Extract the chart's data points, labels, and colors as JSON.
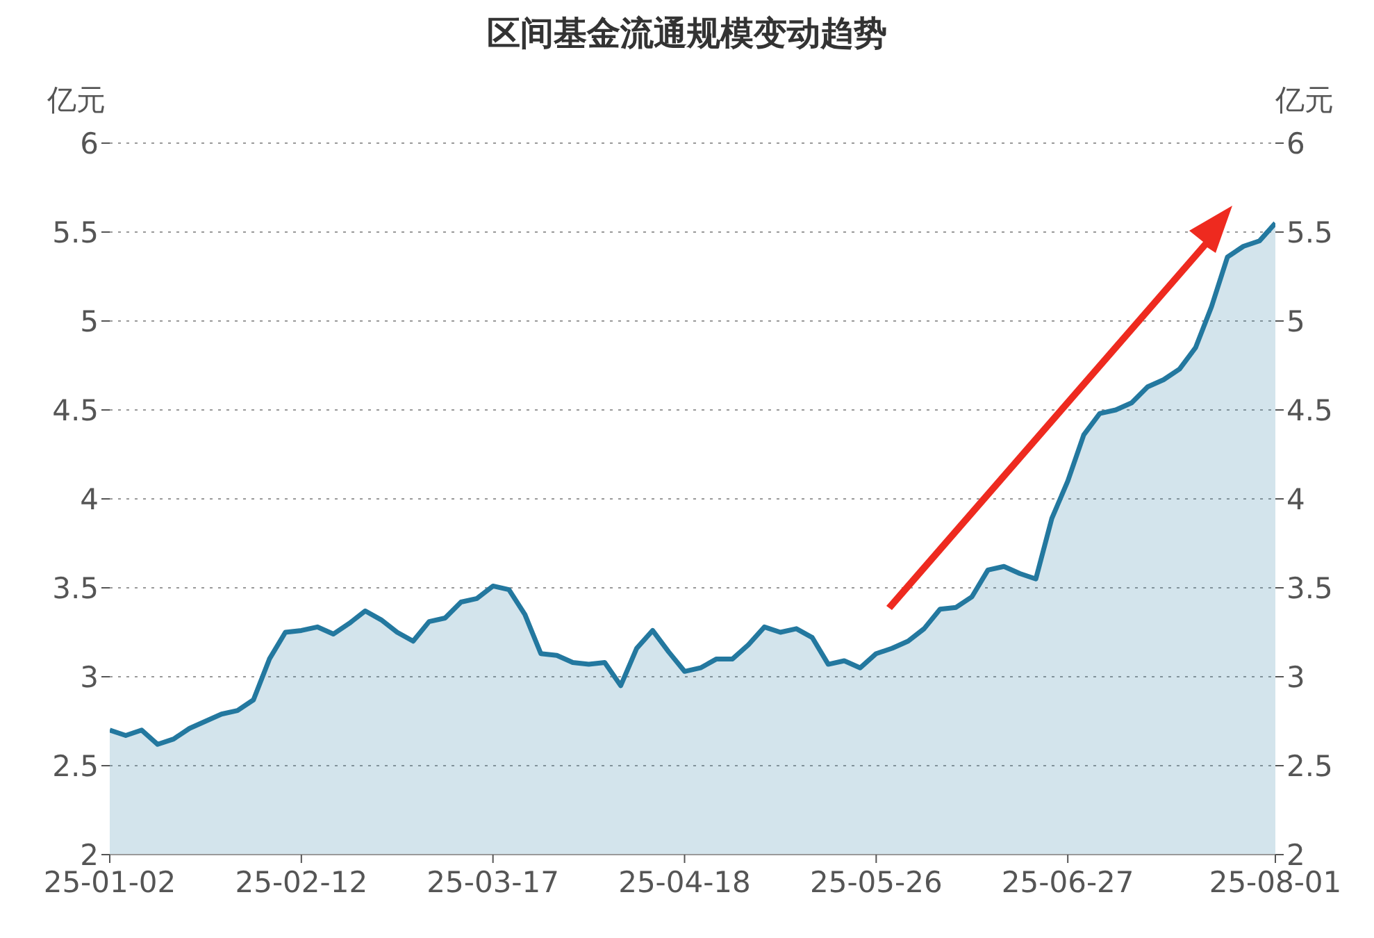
{
  "chart_data": {
    "type": "area",
    "title": "区间基金流通规模变动趋势",
    "ylabel": "亿元",
    "y2label": "亿元",
    "categories": [
      "25-01-02",
      null,
      null,
      null,
      null,
      null,
      null,
      null,
      null,
      null,
      null,
      null,
      "25-02-12",
      null,
      null,
      null,
      null,
      null,
      null,
      null,
      null,
      null,
      null,
      null,
      "25-03-17",
      null,
      null,
      null,
      null,
      null,
      null,
      null,
      null,
      null,
      null,
      null,
      "25-04-18",
      null,
      null,
      null,
      null,
      null,
      null,
      null,
      null,
      null,
      null,
      null,
      "25-05-26",
      null,
      null,
      null,
      null,
      null,
      null,
      null,
      null,
      null,
      null,
      null,
      "25-06-27",
      null,
      null,
      null,
      null,
      null,
      null,
      null,
      null,
      null,
      null,
      null,
      null,
      "25-08-01"
    ],
    "series": [
      {
        "color": "#23789f",
        "values": [
          2.7,
          2.67,
          2.7,
          2.62,
          2.65,
          2.71,
          2.75,
          2.79,
          2.81,
          2.87,
          3.1,
          3.25,
          3.26,
          3.28,
          3.24,
          3.3,
          3.37,
          3.32,
          3.25,
          3.2,
          3.31,
          3.33,
          3.42,
          3.44,
          3.51,
          3.49,
          3.35,
          3.13,
          3.12,
          3.08,
          3.07,
          3.08,
          2.95,
          3.16,
          3.26,
          3.14,
          3.03,
          3.05,
          3.1,
          3.1,
          3.18,
          3.28,
          3.25,
          3.27,
          3.22,
          3.07,
          3.09,
          3.05,
          3.13,
          3.16,
          3.2,
          3.27,
          3.38,
          3.39,
          3.45,
          3.6,
          3.62,
          3.58,
          3.55,
          3.89,
          4.1,
          4.36,
          4.48,
          4.5,
          4.54,
          4.63,
          4.67,
          4.73,
          4.85,
          5.08,
          5.36,
          5.42,
          5.45,
          5.55
        ]
      }
    ],
    "ylim": [
      2,
      6
    ],
    "yticks": [
      2,
      2.5,
      3,
      3.5,
      4,
      4.5,
      5,
      5.5,
      6
    ],
    "y2lim": [
      2,
      6
    ],
    "y2ticks": [
      2,
      2.5,
      3,
      3.5,
      4,
      4.5,
      5,
      5.5,
      6
    ],
    "grid": "y",
    "legend": false,
    "marker": "none",
    "line_style": "solid"
  }
}
